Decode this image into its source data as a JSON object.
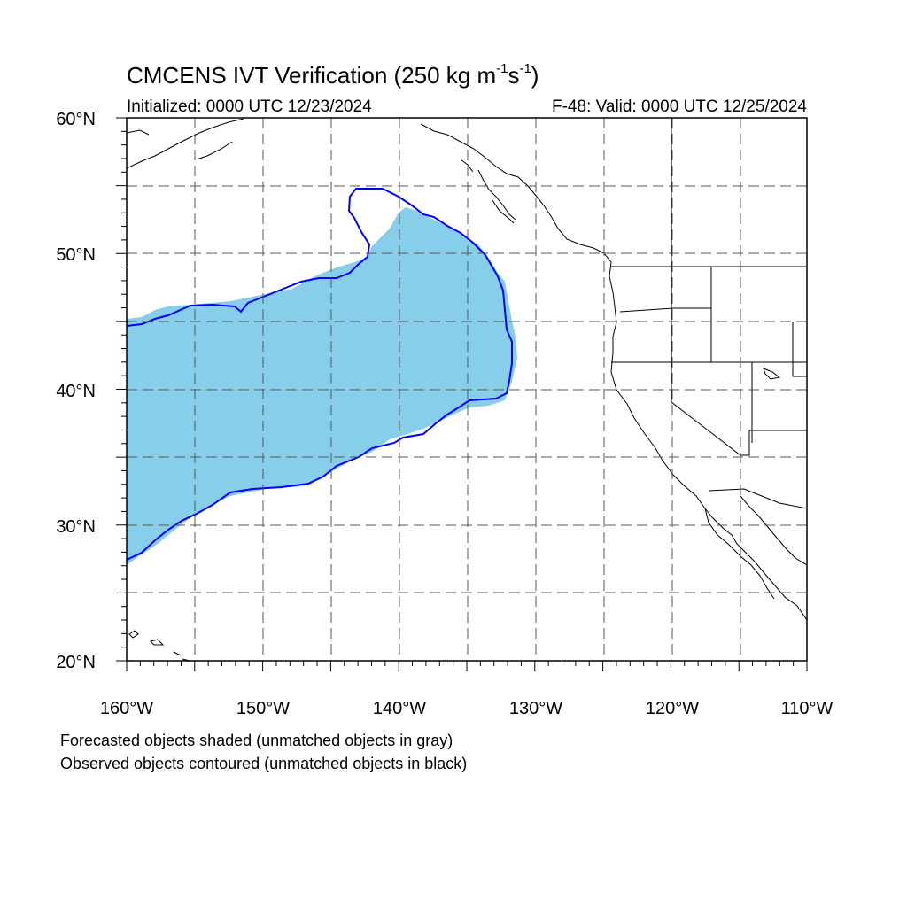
{
  "title": {
    "text_before": "CMCENS IVT Verification (250 kg m",
    "sup1": "-1",
    "text_mid": "s",
    "sup2": "-1",
    "text_after": ")"
  },
  "initialized": "Initialized: 0000 UTC 12/23/2024",
  "valid": "F-48: Valid: 0000 UTC 12/25/2024",
  "map": {
    "lon_range": [
      -160,
      -110
    ],
    "lat_range": [
      20,
      60
    ],
    "lon_labels": [
      "160°W",
      "150°W",
      "140°W",
      "130°W",
      "120°W",
      "110°W"
    ],
    "lat_labels": [
      "20°N",
      "30°N",
      "40°N",
      "50°N",
      "60°N"
    ],
    "grid_interval_deg": 5,
    "grid_style": "dashed",
    "forecast_object_color": "#87ceeb",
    "observed_contour_color": "#0000ff",
    "coastline_color": "#000000"
  },
  "notes": {
    "line1": "Forecasted objects shaded (unmatched objects in gray)",
    "line2": "Observed objects contoured (unmatched objects in black)"
  }
}
